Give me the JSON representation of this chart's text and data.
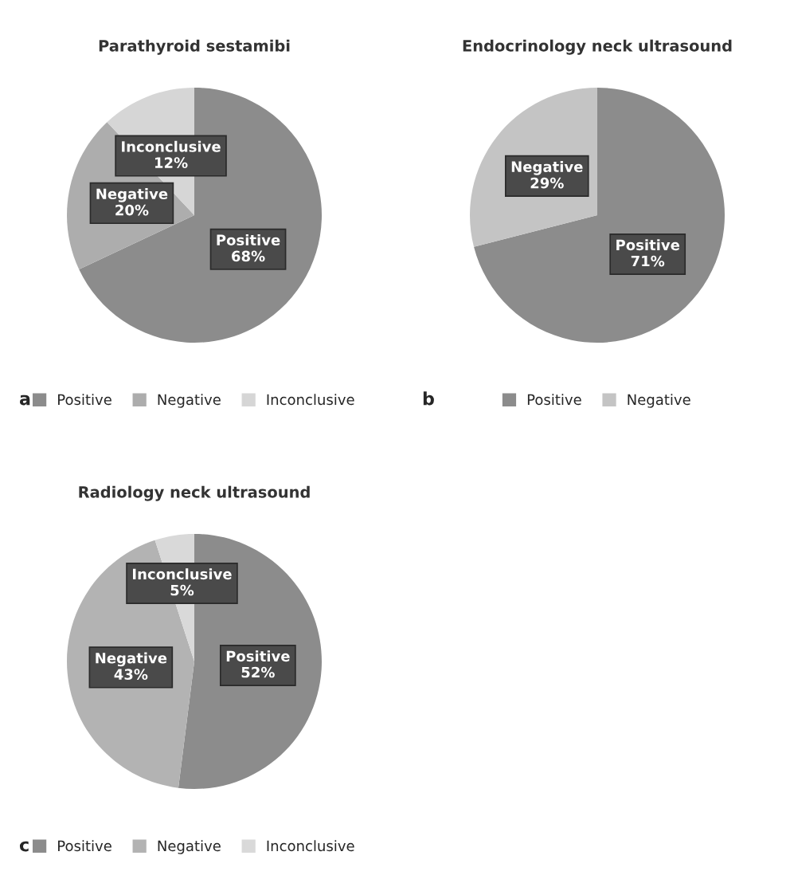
{
  "chart_data": [
    {
      "type": "pie",
      "title": "Parathyroid sestamibi",
      "categories": [
        "Positive",
        "Negative",
        "Inconclusive"
      ],
      "values": [
        68,
        20,
        12
      ],
      "value_labels": [
        "68%",
        "20%",
        "12%"
      ],
      "colors": [
        "#8c8c8c",
        "#adadad",
        "#d6d6d6"
      ],
      "legend": "bottom",
      "annotations": [
        "a"
      ]
    },
    {
      "type": "pie",
      "title": "Endocrinology neck ultrasound",
      "categories": [
        "Positive",
        "Negative"
      ],
      "values": [
        71,
        29
      ],
      "value_labels": [
        "71%",
        "29%"
      ],
      "colors": [
        "#8c8c8c",
        "#c4c4c4"
      ],
      "legend": "bottom",
      "annotations": [
        "b"
      ]
    },
    {
      "type": "pie",
      "title": "Radiology neck ultrasound",
      "categories": [
        "Positive",
        "Negative",
        "Inconclusive"
      ],
      "values": [
        52,
        43,
        5
      ],
      "value_labels": [
        "52%",
        "43%",
        "5%"
      ],
      "colors": [
        "#8c8c8c",
        "#b3b3b3",
        "#d9d9d9"
      ],
      "legend": "bottom",
      "annotations": [
        "c"
      ]
    }
  ]
}
